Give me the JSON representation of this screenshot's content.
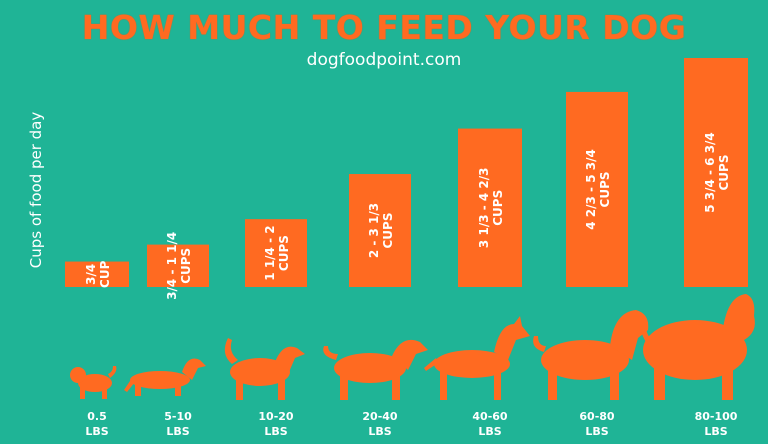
{
  "title": "HOW MUCH TO FEED YOUR DOG",
  "subtitle": "dogfoodpoint.com",
  "colors": {
    "background": "#1fb496",
    "bar": "#ff6a21",
    "text": "#ffffff"
  },
  "chart_data": {
    "type": "bar",
    "title": "HOW MUCH TO FEED YOUR DOG",
    "ylabel": "Cups of food per day",
    "xlabel": "",
    "categories": [
      "0.5 LBS",
      "5-10 LBS",
      "10-20 LBS",
      "20-40 LBS",
      "40-60 LBS",
      "60-80 LBS",
      "80-100 LBS"
    ],
    "weight_lines": [
      [
        "0.5",
        "LBS"
      ],
      [
        "5-10",
        "LBS"
      ],
      [
        "10-20",
        "LBS"
      ],
      [
        "20-40",
        "LBS"
      ],
      [
        "40-60",
        "LBS"
      ],
      [
        "60-80",
        "LBS"
      ],
      [
        "80-100",
        "LBS"
      ]
    ],
    "bar_labels": [
      [
        "3/4",
        "CUP"
      ],
      [
        "3/4 - 1 1/4",
        "CUPS"
      ],
      [
        "1 1/4 - 2",
        "CUPS"
      ],
      [
        "2 - 3 1/3",
        "CUPS"
      ],
      [
        "3 1/3 - 4 2/3",
        "CUPS"
      ],
      [
        "4 2/3 - 5 3/4",
        "CUPS"
      ],
      [
        "5 3/4 - 6 3/4",
        "CUPS"
      ]
    ],
    "values": [
      0.75,
      1.25,
      2,
      3.33,
      4.67,
      5.75,
      6.75
    ],
    "ylim": [
      0,
      6.75
    ],
    "grid": false,
    "legend": "none"
  }
}
